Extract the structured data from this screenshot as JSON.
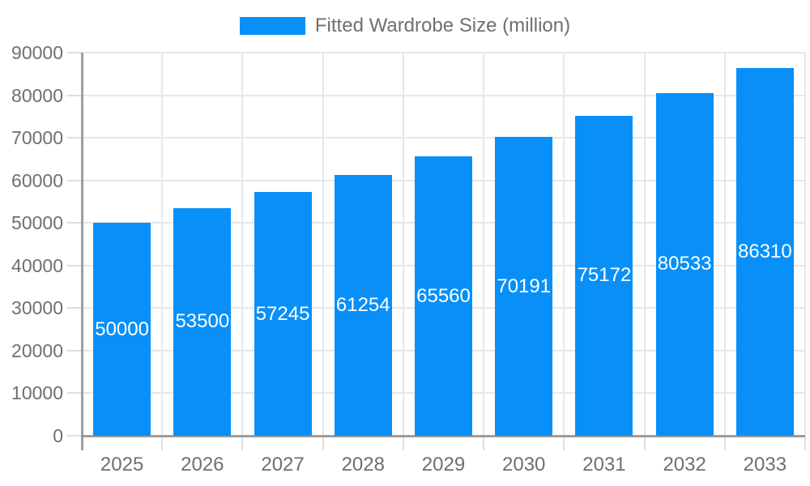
{
  "legend": {
    "label": "Fitted Wardrobe Size (million)"
  },
  "chart_data": {
    "type": "bar",
    "title": "",
    "categories": [
      "2025",
      "2026",
      "2027",
      "2028",
      "2029",
      "2030",
      "2031",
      "2032",
      "2033"
    ],
    "series": [
      {
        "name": "Fitted Wardrobe Size (million)",
        "values": [
          50000,
          53500,
          57245,
          61254,
          65560,
          70191,
          75172,
          80533,
          86310
        ]
      }
    ],
    "data_labels": [
      "50000",
      "53500",
      "57245",
      "61254",
      "65560",
      "70191",
      "75172",
      "80533",
      "86310"
    ],
    "xlabel": "",
    "ylabel": "",
    "ylim": [
      0,
      90000
    ],
    "ytick_step": 10000,
    "yticks": [
      0,
      10000,
      20000,
      30000,
      40000,
      50000,
      60000,
      70000,
      80000,
      90000
    ],
    "grid": true,
    "legend_position": "top-center"
  },
  "colors": {
    "bar": "#0890f8",
    "grid_line": "#e7e7e7",
    "tick_line": "#dedede",
    "axis_line": "#9e9e9e",
    "axis_text": "#6f6f6f",
    "legend_text": "#6f6f6f",
    "data_label_text": "#ffffff",
    "background": "#ffffff"
  }
}
